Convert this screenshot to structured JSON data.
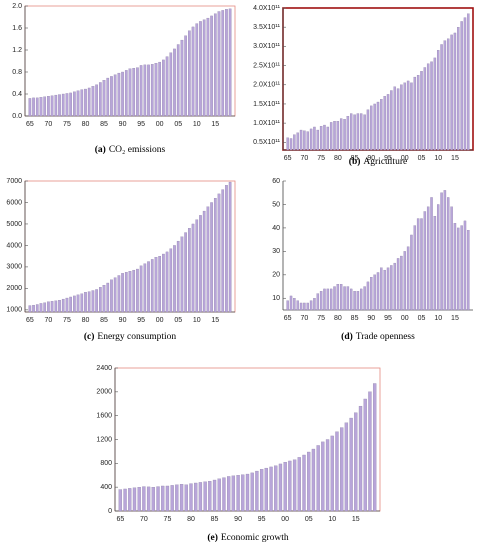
{
  "chart_data": [
    {
      "type": "bar",
      "panel": "(a)",
      "title": "CO₂ emissions",
      "color": "#b8a5d9",
      "categories": [
        "65",
        null,
        null,
        null,
        null,
        "70",
        null,
        null,
        null,
        null,
        "75",
        null,
        null,
        null,
        null,
        "80",
        null,
        null,
        null,
        null,
        "85",
        null,
        null,
        null,
        null,
        "90",
        null,
        null,
        null,
        null,
        "95",
        null,
        null,
        null,
        null,
        "00",
        null,
        null,
        null,
        null,
        "05",
        null,
        null,
        null,
        null,
        "10",
        null,
        null,
        null,
        null,
        "15",
        null,
        null,
        null,
        null
      ],
      "values": [
        0.32,
        0.33,
        0.33,
        0.34,
        0.35,
        0.36,
        0.37,
        0.38,
        0.39,
        0.4,
        0.41,
        0.42,
        0.44,
        0.46,
        0.48,
        0.49,
        0.51,
        0.54,
        0.57,
        0.61,
        0.65,
        0.69,
        0.72,
        0.75,
        0.78,
        0.8,
        0.83,
        0.86,
        0.87,
        0.88,
        0.92,
        0.93,
        0.93,
        0.94,
        0.96,
        0.98,
        1.02,
        1.08,
        1.15,
        1.22,
        1.3,
        1.38,
        1.46,
        1.55,
        1.62,
        1.68,
        1.72,
        1.75,
        1.78,
        1.82,
        1.86,
        1.9,
        1.92,
        1.94,
        1.95
      ],
      "ylim": [
        0,
        2.0
      ],
      "yticks": [
        {
          "value": 0,
          "label": "0.0"
        },
        0.4,
        0.8,
        1.2,
        1.6,
        {
          "value": 2,
          "label": "2.0"
        }
      ]
    },
    {
      "type": "bar",
      "panel": "(b)",
      "title": "Agriculture",
      "color": "#b8a5d9",
      "categories": [
        "65",
        null,
        null,
        null,
        null,
        "70",
        null,
        null,
        null,
        null,
        "75",
        null,
        null,
        null,
        null,
        "80",
        null,
        null,
        null,
        null,
        "85",
        null,
        null,
        null,
        null,
        "90",
        null,
        null,
        null,
        null,
        "95",
        null,
        null,
        null,
        null,
        "00",
        null,
        null,
        null,
        null,
        "05",
        null,
        null,
        null,
        null,
        "10",
        null,
        null,
        null,
        null,
        "15",
        null,
        null,
        null,
        null
      ],
      "values": [
        62000000000,
        60000000000,
        70000000000,
        75000000000,
        82000000000,
        80000000000,
        78000000000,
        85000000000,
        90000000000,
        82000000000,
        92000000000,
        95000000000,
        90000000000,
        102000000000,
        105000000000,
        105000000000,
        112000000000,
        110000000000,
        118000000000,
        125000000000,
        122000000000,
        125000000000,
        125000000000,
        122000000000,
        135000000000,
        145000000000,
        150000000000,
        155000000000,
        162000000000,
        170000000000,
        175000000000,
        185000000000,
        195000000000,
        190000000000,
        200000000000,
        205000000000,
        210000000000,
        205000000000,
        220000000000,
        225000000000,
        235000000000,
        245000000000,
        255000000000,
        260000000000,
        270000000000,
        290000000000,
        305000000000,
        315000000000,
        320000000000,
        330000000000,
        335000000000,
        350000000000,
        365000000000,
        375000000000,
        385000000000
      ],
      "ylim": [
        30000000000,
        400000000000
      ],
      "yticks": [
        {
          "value": 50000000000,
          "label": "0.5X10¹¹"
        },
        {
          "value": 100000000000,
          "label": "1.0X10¹¹"
        },
        {
          "value": 150000000000,
          "label": "1.5X10¹¹"
        },
        {
          "value": 200000000000,
          "label": "2.0X10¹¹"
        },
        {
          "value": 250000000000,
          "label": "2.5X10¹¹"
        },
        {
          "value": 300000000000,
          "label": "3.0X10¹¹"
        },
        {
          "value": 350000000000,
          "label": "3.5X10¹¹"
        },
        {
          "value": 400000000000,
          "label": "4.0X10¹¹"
        }
      ]
    },
    {
      "type": "bar",
      "panel": "(c)",
      "title": "Energy consumption",
      "color": "#b8a5d9",
      "categories": [
        "65",
        null,
        null,
        null,
        null,
        "70",
        null,
        null,
        null,
        null,
        "75",
        null,
        null,
        null,
        null,
        "80",
        null,
        null,
        null,
        null,
        "85",
        null,
        null,
        null,
        null,
        "90",
        null,
        null,
        null,
        null,
        "95",
        null,
        null,
        null,
        null,
        "00",
        null,
        null,
        null,
        null,
        "05",
        null,
        null,
        null,
        null,
        "10",
        null,
        null,
        null,
        null,
        "15",
        null,
        null,
        null,
        null
      ],
      "values": [
        1200,
        1220,
        1250,
        1300,
        1330,
        1380,
        1400,
        1420,
        1450,
        1500,
        1550,
        1600,
        1650,
        1700,
        1750,
        1820,
        1850,
        1900,
        1950,
        2050,
        2150,
        2250,
        2400,
        2500,
        2600,
        2700,
        2750,
        2800,
        2850,
        2900,
        3050,
        3150,
        3250,
        3350,
        3450,
        3500,
        3600,
        3700,
        3850,
        4000,
        4200,
        4400,
        4600,
        4800,
        5000,
        5200,
        5400,
        5600,
        5800,
        6000,
        6200,
        6400,
        6600,
        6800,
        6950
      ],
      "ylim": [
        900,
        7000
      ],
      "yticks": [
        1000,
        2000,
        3000,
        4000,
        5000,
        6000,
        7000
      ]
    },
    {
      "type": "bar",
      "panel": "(d)",
      "title": "Trade openness",
      "color": "#b8a5d9",
      "categories": [
        "65",
        null,
        null,
        null,
        null,
        "70",
        null,
        null,
        null,
        null,
        "75",
        null,
        null,
        null,
        null,
        "80",
        null,
        null,
        null,
        null,
        "85",
        null,
        null,
        null,
        null,
        "90",
        null,
        null,
        null,
        null,
        "95",
        null,
        null,
        null,
        null,
        "00",
        null,
        null,
        null,
        null,
        "05",
        null,
        null,
        null,
        null,
        "10",
        null,
        null,
        null,
        null,
        "15",
        null,
        null,
        null,
        null
      ],
      "values": [
        9,
        11,
        10,
        9,
        8,
        8,
        8,
        9,
        10,
        12,
        13,
        14,
        14,
        14,
        15,
        16,
        16,
        15,
        15,
        14,
        13,
        13,
        14,
        15,
        17,
        19,
        20,
        21,
        23,
        22,
        23,
        24,
        25,
        27,
        28,
        30,
        32,
        37,
        41,
        44,
        44,
        47,
        49,
        53,
        45,
        50,
        55,
        56,
        53,
        49,
        42,
        40,
        41,
        43,
        39
      ],
      "ylim": [
        5,
        60
      ],
      "yticks": [
        10,
        20,
        30,
        40,
        50,
        60
      ]
    },
    {
      "type": "bar",
      "panel": "(e)",
      "title": "Economic growth",
      "color": "#b8a5d9",
      "categories": [
        "65",
        null,
        null,
        null,
        null,
        "70",
        null,
        null,
        null,
        null,
        "75",
        null,
        null,
        null,
        null,
        "80",
        null,
        null,
        null,
        null,
        "85",
        null,
        null,
        null,
        null,
        "90",
        null,
        null,
        null,
        null,
        "95",
        null,
        null,
        null,
        null,
        "00",
        null,
        null,
        null,
        null,
        "05",
        null,
        null,
        null,
        null,
        "10",
        null,
        null,
        null,
        null,
        "15",
        null,
        null,
        null,
        null
      ],
      "values": [
        360,
        370,
        380,
        390,
        400,
        410,
        405,
        400,
        410,
        420,
        420,
        430,
        440,
        450,
        440,
        460,
        470,
        480,
        490,
        500,
        520,
        540,
        560,
        580,
        590,
        600,
        610,
        620,
        640,
        670,
        700,
        720,
        740,
        760,
        790,
        820,
        840,
        860,
        900,
        940,
        990,
        1040,
        1100,
        1160,
        1200,
        1260,
        1330,
        1400,
        1480,
        1560,
        1650,
        1760,
        1880,
        2000,
        2140
      ],
      "ylim": [
        0,
        2400
      ],
      "yticks": [
        0,
        400,
        800,
        1200,
        1600,
        2000,
        2400
      ]
    }
  ]
}
